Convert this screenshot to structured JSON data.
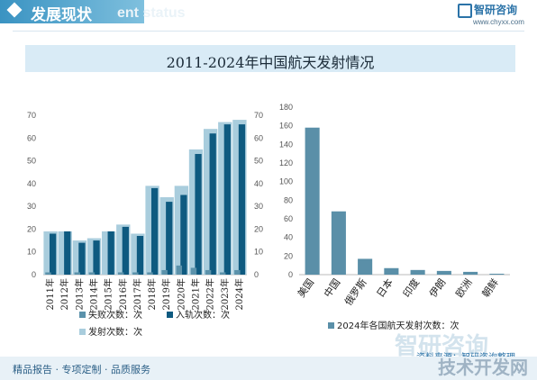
{
  "header": {
    "title": "发展现状",
    "ghost_text": "ent status",
    "logo_name": "智研咨询",
    "logo_url": "www.chyxx.com"
  },
  "chart_title": "2011-2024年中国航天发射情况",
  "footer": {
    "text": "精品报告 · 专项定制 · 品质服务",
    "source": "资料来源：智研咨询整理",
    "watermark": "智研咨询",
    "brand": "技术开发网"
  },
  "colors": {
    "failed": "#5b92ab",
    "orbit": "#0e5a80",
    "launch": "#a9cddd",
    "country_bar": "#5a8fa8"
  },
  "chart_data": [
    {
      "type": "bar",
      "categories": [
        "2011年",
        "2012年",
        "2013年",
        "2014年",
        "2015年",
        "2016年",
        "2017年",
        "2018年",
        "2019年",
        "2020年",
        "2021年",
        "2022年",
        "2023年",
        "2024年"
      ],
      "series": [
        {
          "name": "发射次数：次",
          "values": [
            19,
            19,
            15,
            16,
            19,
            22,
            18,
            39,
            34,
            39,
            55,
            64,
            67,
            68
          ]
        },
        {
          "name": "入轨次数：次",
          "values": [
            18,
            19,
            14,
            15,
            19,
            21,
            17,
            38,
            32,
            35,
            53,
            62,
            66,
            66
          ]
        },
        {
          "name": "失败次数：次",
          "values": [
            1,
            0,
            1,
            1,
            0,
            1,
            1,
            1,
            2,
            4,
            3,
            2,
            1,
            2
          ]
        }
      ],
      "ylim": [
        0,
        70
      ],
      "yticks": [
        0,
        10,
        20,
        30,
        40,
        50,
        60,
        70
      ]
    },
    {
      "type": "bar",
      "categories": [
        "美国",
        "中国",
        "俄罗斯",
        "日本",
        "印度",
        "伊朗",
        "欧洲",
        "朝鲜"
      ],
      "series": [
        {
          "name": "2024年各国航天发射次数：次",
          "values": [
            158,
            68,
            17,
            7,
            5,
            4,
            3,
            1
          ]
        }
      ],
      "ylim": [
        0,
        180
      ],
      "yticks": [
        0,
        20,
        40,
        60,
        80,
        100,
        120,
        140,
        160,
        180
      ]
    }
  ]
}
